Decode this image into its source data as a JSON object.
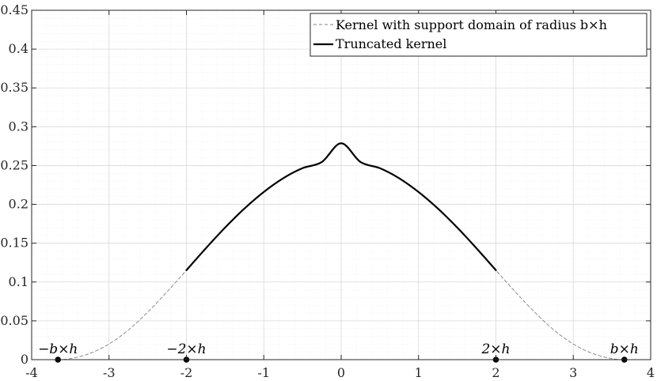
{
  "chart_data": {
    "type": "line",
    "title": "",
    "xlabel": "",
    "ylabel": "",
    "xlim": [
      -4,
      4
    ],
    "ylim": [
      0,
      0.45
    ],
    "x_ticks": [
      -4,
      -3,
      -2,
      -1,
      0,
      1,
      2,
      3,
      4
    ],
    "x_tick_labels": [
      "-4",
      "-3",
      "-2",
      "-1",
      "0",
      "1",
      "2",
      "3",
      "4"
    ],
    "y_ticks": [
      0,
      0.05,
      0.1,
      0.15,
      0.2,
      0.25,
      0.3,
      0.35,
      0.4,
      0.45
    ],
    "y_tick_labels": [
      "0",
      "0.05",
      "0.1",
      "0.15",
      "0.2",
      "0.25",
      "0.3",
      "0.35",
      "0.4",
      "0.45"
    ],
    "grid": true,
    "minor_grid": true,
    "legend_position": "top-right",
    "series": [
      {
        "name": "Kernel with support domain of radius b×h",
        "style": "dashed",
        "color": "#808080",
        "x": [
          -3.66,
          -3.5,
          -3.25,
          -3.0,
          -2.75,
          -2.5,
          -2.25,
          -2.0,
          -1.75,
          -1.5,
          -1.25,
          -1.0,
          -0.75,
          -0.5,
          -0.25,
          0.0,
          0.25,
          0.5,
          0.75,
          1.0,
          1.25,
          1.5,
          1.75,
          2.0,
          2.25,
          2.5,
          2.75,
          3.0,
          3.25,
          3.5,
          3.66
        ],
        "y": [
          0.0,
          0.0013,
          0.0079,
          0.0202,
          0.0381,
          0.0612,
          0.0874,
          0.1152,
          0.1433,
          0.1701,
          0.1946,
          0.216,
          0.2336,
          0.2466,
          0.2546,
          0.2787,
          0.2546,
          0.2466,
          0.2336,
          0.216,
          0.1946,
          0.1701,
          0.1433,
          0.1152,
          0.0874,
          0.0612,
          0.0381,
          0.0202,
          0.0079,
          0.0013,
          0.0
        ]
      },
      {
        "name": "Truncated kernel",
        "style": "solid",
        "color": "#000000",
        "x": [
          -2.0,
          -1.75,
          -1.5,
          -1.25,
          -1.0,
          -0.75,
          -0.5,
          -0.25,
          0.0,
          0.25,
          0.5,
          0.75,
          1.0,
          1.25,
          1.5,
          1.75,
          2.0
        ],
        "y": [
          0.1152,
          0.1433,
          0.1701,
          0.1946,
          0.216,
          0.2336,
          0.2466,
          0.2546,
          0.2787,
          0.2546,
          0.2466,
          0.2336,
          0.216,
          0.1946,
          0.1701,
          0.1433,
          0.1152
        ]
      }
    ],
    "markers": [
      {
        "x": -3.66,
        "y": 0,
        "label": "−b×h"
      },
      {
        "x": -2,
        "y": 0,
        "label": "−2×h"
      },
      {
        "x": 2,
        "y": 0,
        "label": "2×h"
      },
      {
        "x": 3.66,
        "y": 0,
        "label": "b×h"
      }
    ]
  }
}
